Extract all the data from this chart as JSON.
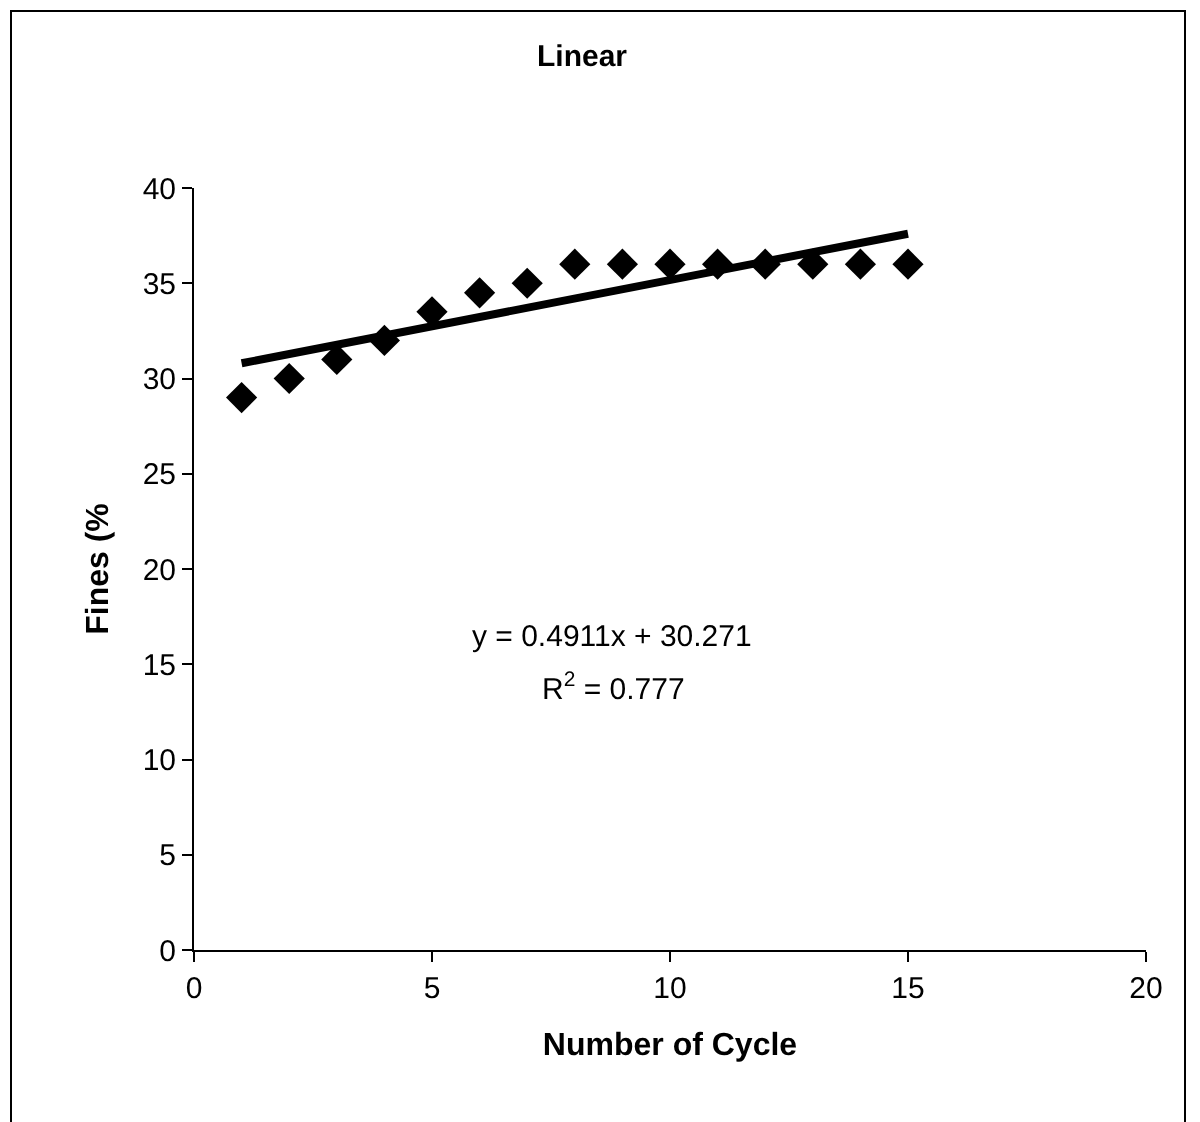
{
  "chart_data": {
    "type": "scatter",
    "title": "Linear",
    "xlabel": "Number of Cycle",
    "ylabel": "Fines (%",
    "x": [
      1,
      2,
      3,
      4,
      5,
      6,
      7,
      8,
      9,
      10,
      11,
      12,
      13,
      14,
      15
    ],
    "series": [
      {
        "color": "#000000",
        "marker": "diamond",
        "values": [
          29,
          30,
          31,
          32,
          33.5,
          34.5,
          35,
          36,
          36,
          36,
          36,
          36,
          36,
          36,
          36
        ]
      },
      {
        "type": "line",
        "color": "#000000",
        "x": [
          1,
          15
        ],
        "values": [
          30.8,
          37.6
        ],
        "line_style": "solid",
        "marker": "none"
      }
    ],
    "xlim": [
      0,
      20
    ],
    "xticks": [
      0,
      5,
      10,
      15,
      20
    ],
    "ylim": [
      0,
      40
    ],
    "yticks": [
      0,
      5,
      10,
      15,
      20,
      25,
      30,
      35,
      40
    ],
    "grid": false,
    "annotations": [
      "y = 0.4911x + 30.271",
      "R$^{2}$ = 0.777"
    ]
  }
}
